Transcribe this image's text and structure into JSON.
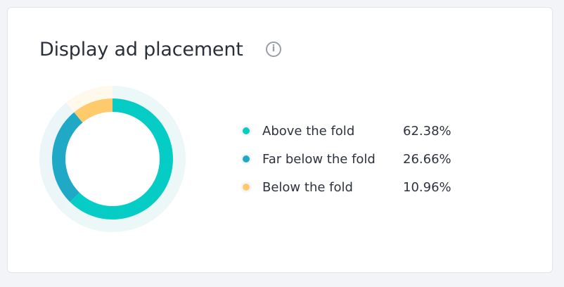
{
  "title": "Display ad placement",
  "info_icon": "info-circle-icon",
  "chart_data": {
    "type": "pie",
    "variant": "donut",
    "categories": [
      "Above the fold",
      "Far below the fold",
      "Below the fold"
    ],
    "values": [
      62.38,
      26.66,
      10.96
    ],
    "labels": [
      "62.38%",
      "26.66%",
      "10.96%"
    ],
    "colors": [
      "#05cdc6",
      "#1fa9c6",
      "#ffca6b"
    ],
    "legend_position": "right"
  }
}
